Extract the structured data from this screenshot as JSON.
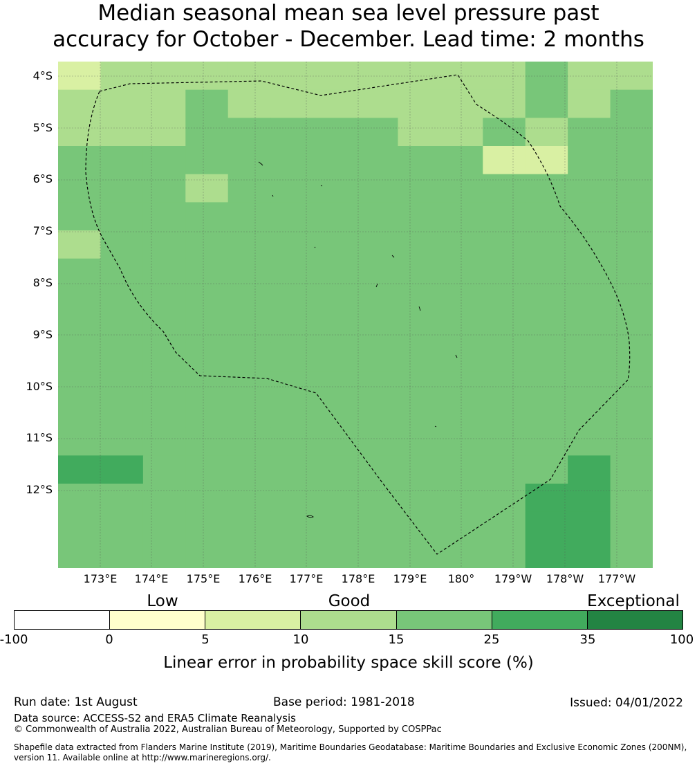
{
  "title": {
    "line1": "Median seasonal mean sea level pressure past",
    "line2": "accuracy for October - December. Lead time: 2 months"
  },
  "map": {
    "lat_labels": [
      "4°S",
      "5°S",
      "6°S",
      "7°S",
      "8°S",
      "9°S",
      "10°S",
      "11°S",
      "12°S"
    ],
    "lon_labels": [
      "173°E",
      "174°E",
      "175°E",
      "176°E",
      "177°E",
      "178°E",
      "179°E",
      "180°",
      "179°W",
      "178°W",
      "177°W"
    ],
    "gridlines": true,
    "boundary": "dashed EEZ outline",
    "skill_grid": {
      "columns": 14,
      "rows": 18,
      "cells": [
        "23333333333433",
        "33343333333434",
        "33344444334344",
        "44444444442244",
        "44434444444444",
        "44444444444444",
        "34444444444444",
        "44444444444444",
        "44444444444444",
        "44444444444444",
        "44444444444444",
        "44444444444444",
        "44444444444444",
        "44444444444444",
        "55444444444454",
        "44444444444554",
        "44444444444554",
        "44444444444554"
      ]
    }
  },
  "legend": {
    "categories": [
      "Low",
      "Good",
      "Exceptional"
    ],
    "colors": [
      "#ffffff",
      "#ffffcc",
      "#d9f0a3",
      "#addd8e",
      "#78c679",
      "#41ab5d",
      "#238443"
    ],
    "ticks": [
      "-100",
      "0",
      "5",
      "10",
      "15",
      "25",
      "35",
      "100"
    ],
    "label": "Linear error in probability space skill score (%)"
  },
  "footer": {
    "run_date": "Run date: 1st August",
    "base_period": "Base period: 1981-2018",
    "issued": "Issued: 04/01/2022",
    "data_source": "Data source: ACCESS-S2 and ERA5 Climate Reanalysis",
    "copyright": "© Commonwealth of Australia 2022, Australian Bureau of Meteorology, Supported by COSPPac",
    "shapefile_line1": "Shapefile data extracted from Flanders Marine Institute (2019), Maritime Boundaries Geodatabase: Maritime Boundaries and Exclusive Economic Zones (200NM),",
    "shapefile_line2": "version 11. Available online at http://www.marineregions.org/."
  }
}
